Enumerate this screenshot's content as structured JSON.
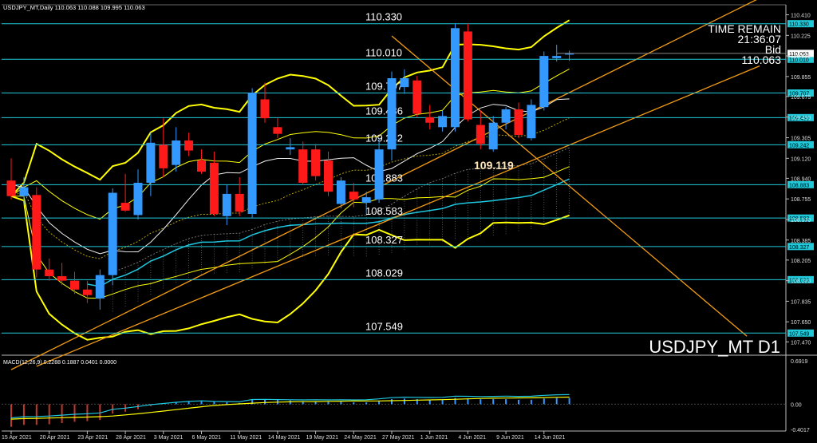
{
  "header": {
    "title": "USDJPY_MT,Daily",
    "ohlc": "110.063 110.088 109.995 110.063"
  },
  "info": {
    "time_remain_label": "TIME REMAIN",
    "time_remain": "21:36:07",
    "bid_label": "Bid",
    "bid": "110.063"
  },
  "watermark": "USDJPY_MT D1",
  "chart_data": [
    {
      "type": "candlestick",
      "title": "USDJPY_MT,Daily",
      "colors": {
        "up": "#3399ff",
        "down": "#ff1a1a",
        "level": "#20c8d8",
        "band": "#ffff00",
        "trend": "#f39c12"
      },
      "ylim": [
        107.35,
        110.5
      ],
      "price_ticks": [
        "110.410",
        "110.225",
        "110.040",
        "109.855",
        "109.675",
        "109.490",
        "109.305",
        "109.120",
        "108.940",
        "108.755",
        "108.570",
        "108.385",
        "108.205",
        "108.020",
        "107.835",
        "107.650",
        "107.470"
      ],
      "date_ticks": [
        {
          "i": 0,
          "label": "15 Apr 2021"
        },
        {
          "i": 3,
          "label": "20 Apr 2021"
        },
        {
          "i": 6,
          "label": "23 Apr 2021"
        },
        {
          "i": 9,
          "label": "28 Apr 2021"
        },
        {
          "i": 12,
          "label": "3 May 2021"
        },
        {
          "i": 15,
          "label": "6 May 2021"
        },
        {
          "i": 18,
          "label": "11 May 2021"
        },
        {
          "i": 21,
          "label": "14 May 2021"
        },
        {
          "i": 24,
          "label": "19 May 2021"
        },
        {
          "i": 27,
          "label": "24 May 2021"
        },
        {
          "i": 30,
          "label": "27 May 2021"
        },
        {
          "i": 33,
          "label": "1 Jun 2021"
        },
        {
          "i": 36,
          "label": "4 Jun 2021"
        },
        {
          "i": 39,
          "label": "9 Jun 2021"
        },
        {
          "i": 42,
          "label": "14 Jun 2021"
        }
      ],
      "candles": [
        {
          "o": 108.92,
          "h": 109.12,
          "l": 108.75,
          "c": 108.78
        },
        {
          "o": 108.78,
          "h": 108.95,
          "l": 108.7,
          "c": 108.86
        },
        {
          "o": 108.79,
          "h": 108.86,
          "l": 108.05,
          "c": 108.12
        },
        {
          "o": 108.12,
          "h": 108.22,
          "l": 108.02,
          "c": 108.06
        },
        {
          "o": 108.06,
          "h": 108.18,
          "l": 107.98,
          "c": 108.02
        },
        {
          "o": 108.02,
          "h": 108.1,
          "l": 107.9,
          "c": 107.94
        },
        {
          "o": 107.94,
          "h": 108.02,
          "l": 107.82,
          "c": 107.89
        },
        {
          "o": 107.86,
          "h": 108.12,
          "l": 107.76,
          "c": 108.07
        },
        {
          "o": 108.07,
          "h": 108.85,
          "l": 107.98,
          "c": 108.81
        },
        {
          "o": 108.72,
          "h": 108.98,
          "l": 108.64,
          "c": 108.65
        },
        {
          "o": 108.61,
          "h": 109.02,
          "l": 108.57,
          "c": 108.9
        },
        {
          "o": 108.9,
          "h": 109.35,
          "l": 108.78,
          "c": 109.26
        },
        {
          "o": 109.24,
          "h": 109.48,
          "l": 108.95,
          "c": 109.03
        },
        {
          "o": 109.06,
          "h": 109.4,
          "l": 109.0,
          "c": 109.28
        },
        {
          "o": 109.28,
          "h": 109.35,
          "l": 109.14,
          "c": 109.19
        },
        {
          "o": 109.1,
          "h": 109.2,
          "l": 108.98,
          "c": 109.0
        },
        {
          "o": 109.08,
          "h": 109.18,
          "l": 108.6,
          "c": 108.62
        },
        {
          "o": 108.6,
          "h": 108.88,
          "l": 108.52,
          "c": 108.8
        },
        {
          "o": 108.8,
          "h": 108.95,
          "l": 108.6,
          "c": 108.64
        },
        {
          "o": 108.62,
          "h": 109.75,
          "l": 108.58,
          "c": 109.71
        },
        {
          "o": 109.65,
          "h": 109.8,
          "l": 109.44,
          "c": 109.48
        },
        {
          "o": 109.4,
          "h": 109.48,
          "l": 109.3,
          "c": 109.34
        },
        {
          "o": 109.2,
          "h": 109.3,
          "l": 109.15,
          "c": 109.22
        },
        {
          "o": 109.2,
          "h": 109.27,
          "l": 108.88,
          "c": 108.9
        },
        {
          "o": 109.2,
          "h": 109.25,
          "l": 108.92,
          "c": 108.96
        },
        {
          "o": 109.1,
          "h": 109.18,
          "l": 108.78,
          "c": 108.82
        },
        {
          "o": 108.71,
          "h": 108.95,
          "l": 108.67,
          "c": 108.92
        },
        {
          "o": 108.82,
          "h": 108.9,
          "l": 108.68,
          "c": 108.75
        },
        {
          "o": 108.72,
          "h": 108.82,
          "l": 108.62,
          "c": 108.77
        },
        {
          "o": 108.75,
          "h": 109.3,
          "l": 108.72,
          "c": 109.2
        },
        {
          "o": 109.2,
          "h": 109.9,
          "l": 109.1,
          "c": 109.84
        },
        {
          "o": 109.76,
          "h": 109.92,
          "l": 109.7,
          "c": 109.84
        },
        {
          "o": 109.82,
          "h": 109.86,
          "l": 109.49,
          "c": 109.52
        },
        {
          "o": 109.49,
          "h": 109.6,
          "l": 109.38,
          "c": 109.44
        },
        {
          "o": 109.4,
          "h": 109.55,
          "l": 109.36,
          "c": 109.5
        },
        {
          "o": 109.4,
          "h": 110.33,
          "l": 109.36,
          "c": 110.29
        },
        {
          "o": 110.26,
          "h": 110.33,
          "l": 109.45,
          "c": 109.47
        },
        {
          "o": 109.42,
          "h": 109.55,
          "l": 109.2,
          "c": 109.25
        },
        {
          "o": 109.2,
          "h": 109.5,
          "l": 109.18,
          "c": 109.44
        },
        {
          "o": 109.44,
          "h": 109.58,
          "l": 109.38,
          "c": 109.56
        },
        {
          "o": 109.56,
          "h": 109.62,
          "l": 109.3,
          "c": 109.33
        },
        {
          "o": 109.3,
          "h": 109.65,
          "l": 109.28,
          "c": 109.6
        },
        {
          "o": 109.58,
          "h": 110.08,
          "l": 109.55,
          "c": 110.04
        },
        {
          "o": 110.02,
          "h": 110.14,
          "l": 109.99,
          "c": 110.04
        },
        {
          "o": 110.063,
          "h": 110.088,
          "l": 109.995,
          "c": 110.063
        }
      ],
      "levels": [
        "110.330",
        "110.010",
        "109.707",
        "109.486",
        "109.242",
        "108.883",
        "108.583",
        "108.327",
        "108.029",
        "107.549"
      ],
      "annotation": "109.119",
      "macd": {
        "label": "MACD(12,26,9) 0.2288 0.1887 0.0401 0.0000",
        "ylim": [
          -0.4017,
          0.6919
        ],
        "ticks": [
          "0.6919",
          "0.00",
          "-0.4017"
        ],
        "histogram": [
          -0.36,
          -0.33,
          -0.33,
          -0.32,
          -0.3,
          -0.28,
          -0.27,
          -0.25,
          -0.15,
          -0.12,
          -0.08,
          -0.03,
          0.0,
          0.03,
          0.05,
          0.06,
          0.04,
          0.03,
          0.02,
          0.08,
          0.08,
          0.07,
          0.06,
          0.05,
          0.05,
          0.04,
          0.04,
          0.03,
          0.03,
          0.05,
          0.08,
          0.09,
          0.08,
          0.07,
          0.07,
          0.1,
          0.09,
          0.08,
          0.08,
          0.08,
          0.07,
          0.07,
          0.09,
          0.1,
          0.1
        ]
      }
    }
  ]
}
